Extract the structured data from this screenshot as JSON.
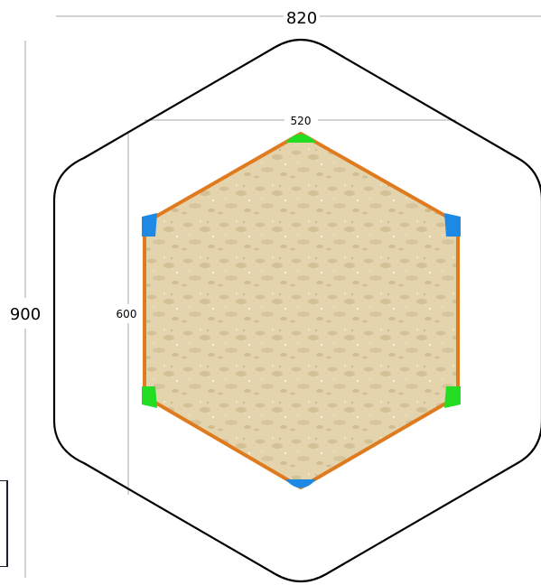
{
  "dimensions": {
    "outer_width": "820",
    "outer_height": "900",
    "inner_width": "520",
    "inner_height": "600"
  },
  "colors": {
    "background": "#ffffff",
    "outline": "#000000",
    "dimension_line": "#a8a8a8",
    "frame": "#e07a1f",
    "corner_green": "#22dd22",
    "corner_blue": "#1e88e5",
    "sand": "#e3d4ad",
    "sand_shadow": "#cdb88b"
  },
  "icons": {
    "sand_fill": "sand-texture",
    "corner_cap": "corner-connector-icon"
  }
}
